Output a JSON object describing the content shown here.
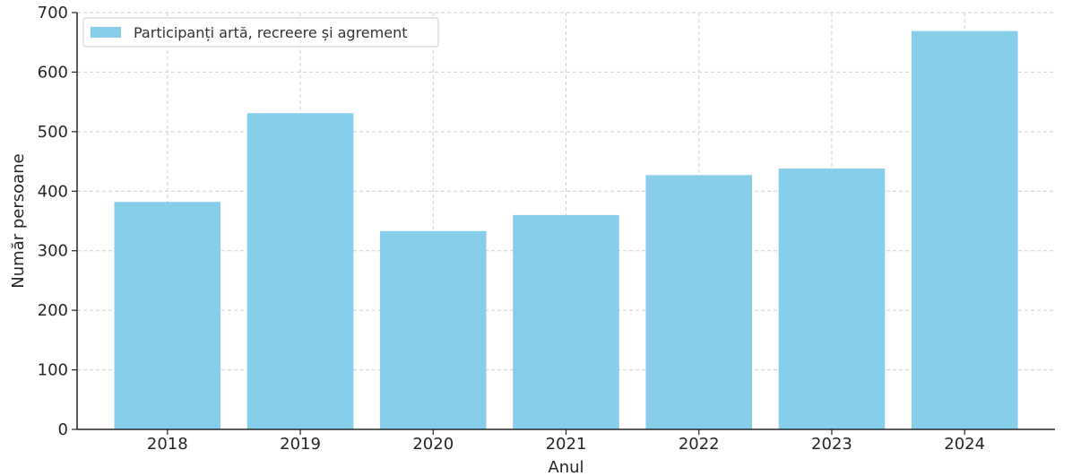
{
  "chart_data": {
    "type": "bar",
    "categories": [
      "2018",
      "2019",
      "2020",
      "2021",
      "2022",
      "2023",
      "2024"
    ],
    "series": [
      {
        "name": "Participanți artă, recreere și agrement",
        "values": [
          382,
          531,
          333,
          360,
          427,
          438,
          669
        ],
        "color": "#87ceeb"
      }
    ],
    "xlabel": "Anul",
    "ylabel": "Număr persoane",
    "ylim": [
      0,
      700
    ],
    "yticks": [
      0,
      100,
      200,
      300,
      400,
      500,
      600,
      700
    ],
    "grid": true,
    "legend_position": "top-left"
  }
}
